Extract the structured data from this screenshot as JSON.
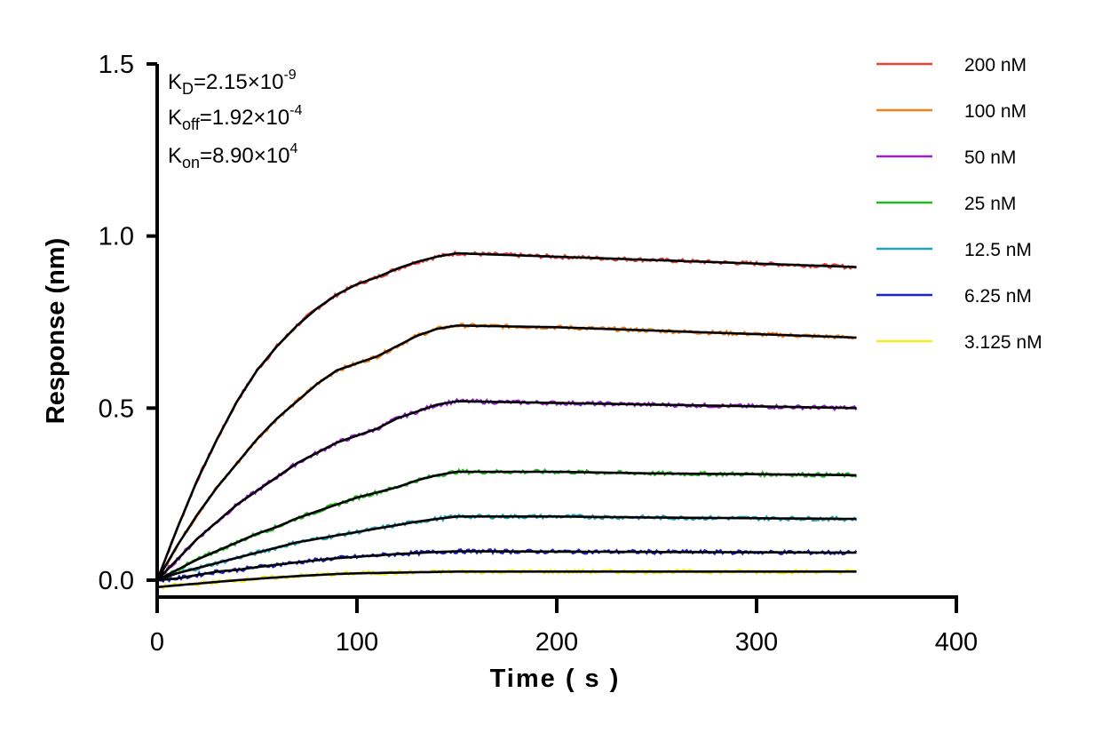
{
  "chart_data": {
    "type": "line",
    "xlabel": "Time ( s )",
    "ylabel": "Response (nm)",
    "xlim": [
      0,
      400
    ],
    "ylim": [
      0,
      1.5
    ],
    "xticks": [
      "0",
      "100",
      "200",
      "300",
      "400"
    ],
    "yticks": [
      "0.0",
      "0.5",
      "1.0",
      "1.5"
    ],
    "grid": false,
    "legend_position": "right",
    "association_end_time": 150,
    "annotations": {
      "kd": {
        "label": "K",
        "sub": "D",
        "value": "=2.15×10",
        "exp": "-9"
      },
      "koff": {
        "label": "K",
        "sub": "off",
        "value": "=1.92×10",
        "exp": "-4"
      },
      "kon": {
        "label": "K",
        "sub": "on",
        "value": "=8.90×10",
        "exp": "4"
      }
    },
    "fit_color": "#000000",
    "series": [
      {
        "name": "200 nM",
        "color": "#e8443a",
        "x": [
          0,
          10,
          20,
          30,
          40,
          50,
          60,
          70,
          80,
          90,
          100,
          110,
          120,
          130,
          140,
          150,
          200,
          250,
          300,
          350
        ],
        "y": [
          0,
          0.15,
          0.29,
          0.41,
          0.52,
          0.61,
          0.68,
          0.74,
          0.79,
          0.83,
          0.86,
          0.88,
          0.905,
          0.925,
          0.94,
          0.95,
          0.94,
          0.93,
          0.92,
          0.91
        ]
      },
      {
        "name": "100 nM",
        "color": "#f2821e",
        "x": [
          0,
          10,
          20,
          30,
          40,
          50,
          60,
          70,
          80,
          90,
          100,
          110,
          120,
          130,
          140,
          150,
          200,
          250,
          300,
          350
        ],
        "y": [
          0,
          0.1,
          0.19,
          0.27,
          0.34,
          0.41,
          0.47,
          0.52,
          0.57,
          0.61,
          0.63,
          0.65,
          0.68,
          0.71,
          0.73,
          0.74,
          0.735,
          0.725,
          0.715,
          0.705
        ]
      },
      {
        "name": "50 nM",
        "color": "#9b1fd6",
        "x": [
          0,
          10,
          20,
          30,
          40,
          50,
          60,
          70,
          80,
          90,
          100,
          110,
          120,
          130,
          140,
          150,
          200,
          250,
          300,
          350
        ],
        "y": [
          0,
          0.06,
          0.12,
          0.17,
          0.22,
          0.26,
          0.3,
          0.34,
          0.37,
          0.4,
          0.42,
          0.44,
          0.47,
          0.49,
          0.51,
          0.52,
          0.515,
          0.51,
          0.505,
          0.5
        ]
      },
      {
        "name": "25 nM",
        "color": "#22b822",
        "x": [
          0,
          10,
          20,
          30,
          40,
          50,
          60,
          70,
          80,
          90,
          100,
          110,
          120,
          130,
          140,
          150,
          200,
          250,
          300,
          350
        ],
        "y": [
          0,
          0.03,
          0.06,
          0.085,
          0.11,
          0.135,
          0.155,
          0.18,
          0.2,
          0.22,
          0.24,
          0.255,
          0.27,
          0.29,
          0.305,
          0.315,
          0.315,
          0.31,
          0.308,
          0.305
        ]
      },
      {
        "name": "12.5 nM",
        "color": "#21a3b8",
        "x": [
          0,
          10,
          20,
          30,
          40,
          50,
          60,
          70,
          80,
          90,
          100,
          110,
          120,
          130,
          140,
          150,
          200,
          250,
          300,
          350
        ],
        "y": [
          0,
          0.02,
          0.035,
          0.05,
          0.065,
          0.08,
          0.095,
          0.11,
          0.12,
          0.13,
          0.14,
          0.15,
          0.16,
          0.17,
          0.178,
          0.185,
          0.185,
          0.182,
          0.18,
          0.178
        ]
      },
      {
        "name": "6.25 nM",
        "color": "#1a22d4",
        "x": [
          0,
          10,
          20,
          30,
          40,
          50,
          60,
          70,
          80,
          90,
          100,
          110,
          120,
          130,
          140,
          150,
          200,
          250,
          300,
          350
        ],
        "y": [
          0,
          0.005,
          0.015,
          0.025,
          0.03,
          0.038,
          0.045,
          0.052,
          0.058,
          0.064,
          0.068,
          0.072,
          0.076,
          0.079,
          0.082,
          0.084,
          0.083,
          0.082,
          0.081,
          0.08
        ]
      },
      {
        "name": "3.125 nM",
        "color": "#f4ee1c",
        "x": [
          0,
          10,
          20,
          30,
          40,
          50,
          60,
          70,
          80,
          90,
          100,
          110,
          120,
          130,
          140,
          150,
          200,
          250,
          300,
          350
        ],
        "y": [
          -0.02,
          -0.015,
          -0.01,
          -0.005,
          0.0,
          0.004,
          0.008,
          0.012,
          0.015,
          0.018,
          0.02,
          0.021,
          0.022,
          0.023,
          0.024,
          0.025,
          0.025,
          0.025,
          0.025,
          0.025
        ]
      }
    ]
  }
}
